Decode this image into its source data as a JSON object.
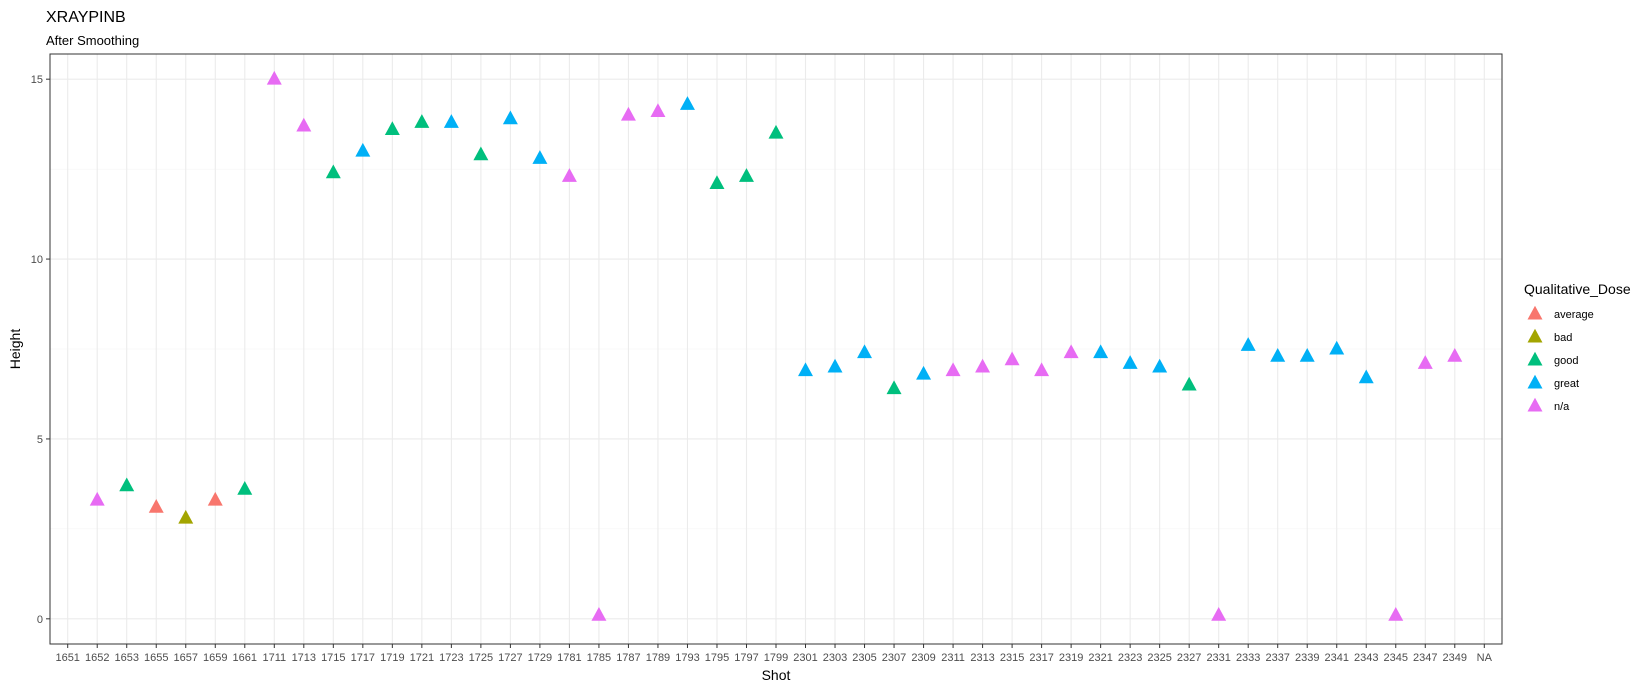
{
  "chart_data": {
    "type": "scatter",
    "title": "XRAYPINB",
    "subtitle": "After Smoothing",
    "xlabel": "Shot",
    "ylabel": "Height",
    "ylim": [
      -0.7,
      15.7
    ],
    "yticks": [
      0,
      5,
      10,
      15
    ],
    "grid": true,
    "legend_position": "right",
    "legend": {
      "title": "Qualitative_Dose",
      "entries": [
        {
          "label": "average",
          "color": "#F8766D"
        },
        {
          "label": "bad",
          "color": "#A3A500"
        },
        {
          "label": "good",
          "color": "#00BF7D"
        },
        {
          "label": "great",
          "color": "#00B0F6"
        },
        {
          "label": "n/a",
          "color": "#E76BF3"
        }
      ]
    },
    "categories": [
      "1651",
      "1652",
      "1653",
      "1655",
      "1657",
      "1659",
      "1661",
      "1711",
      "1713",
      "1715",
      "1717",
      "1719",
      "1721",
      "1723",
      "1725",
      "1727",
      "1729",
      "1781",
      "1785",
      "1787",
      "1789",
      "1793",
      "1795",
      "1797",
      "1799",
      "2301",
      "2303",
      "2305",
      "2307",
      "2309",
      "2311",
      "2313",
      "2315",
      "2317",
      "2319",
      "2321",
      "2323",
      "2325",
      "2327",
      "2331",
      "2333",
      "2337",
      "2339",
      "2341",
      "2343",
      "2345",
      "2347",
      "2349",
      "NA"
    ],
    "points": [
      {
        "x": "1652",
        "y": 3.3,
        "dose": "n/a"
      },
      {
        "x": "1653",
        "y": 3.7,
        "dose": "good"
      },
      {
        "x": "1655",
        "y": 3.1,
        "dose": "average"
      },
      {
        "x": "1657",
        "y": 2.8,
        "dose": "bad"
      },
      {
        "x": "1659",
        "y": 3.3,
        "dose": "average"
      },
      {
        "x": "1661",
        "y": 3.6,
        "dose": "good"
      },
      {
        "x": "1711",
        "y": 15.0,
        "dose": "n/a"
      },
      {
        "x": "1713",
        "y": 13.7,
        "dose": "n/a"
      },
      {
        "x": "1715",
        "y": 12.4,
        "dose": "good"
      },
      {
        "x": "1717",
        "y": 13.0,
        "dose": "great"
      },
      {
        "x": "1719",
        "y": 13.6,
        "dose": "good"
      },
      {
        "x": "1721",
        "y": 13.8,
        "dose": "good"
      },
      {
        "x": "1723",
        "y": 13.8,
        "dose": "great"
      },
      {
        "x": "1725",
        "y": 12.9,
        "dose": "good"
      },
      {
        "x": "1727",
        "y": 13.9,
        "dose": "great"
      },
      {
        "x": "1729",
        "y": 12.8,
        "dose": "great"
      },
      {
        "x": "1781",
        "y": 12.3,
        "dose": "n/a"
      },
      {
        "x": "1785",
        "y": 0.1,
        "dose": "n/a"
      },
      {
        "x": "1787",
        "y": 14.0,
        "dose": "n/a"
      },
      {
        "x": "1789",
        "y": 14.1,
        "dose": "n/a"
      },
      {
        "x": "1793",
        "y": 14.3,
        "dose": "great"
      },
      {
        "x": "1795",
        "y": 12.1,
        "dose": "good"
      },
      {
        "x": "1797",
        "y": 12.3,
        "dose": "good"
      },
      {
        "x": "1799",
        "y": 13.5,
        "dose": "good"
      },
      {
        "x": "2301",
        "y": 6.9,
        "dose": "great"
      },
      {
        "x": "2303",
        "y": 7.0,
        "dose": "great"
      },
      {
        "x": "2305",
        "y": 7.4,
        "dose": "great"
      },
      {
        "x": "2307",
        "y": 6.4,
        "dose": "good"
      },
      {
        "x": "2309",
        "y": 6.8,
        "dose": "great"
      },
      {
        "x": "2311",
        "y": 6.9,
        "dose": "n/a"
      },
      {
        "x": "2313",
        "y": 7.0,
        "dose": "n/a"
      },
      {
        "x": "2315",
        "y": 7.2,
        "dose": "n/a"
      },
      {
        "x": "2317",
        "y": 6.9,
        "dose": "n/a"
      },
      {
        "x": "2319",
        "y": 7.4,
        "dose": "n/a"
      },
      {
        "x": "2321",
        "y": 7.4,
        "dose": "great"
      },
      {
        "x": "2323",
        "y": 7.1,
        "dose": "great"
      },
      {
        "x": "2325",
        "y": 7.0,
        "dose": "great"
      },
      {
        "x": "2327",
        "y": 6.5,
        "dose": "good"
      },
      {
        "x": "2331",
        "y": 0.1,
        "dose": "n/a"
      },
      {
        "x": "2333",
        "y": 7.6,
        "dose": "great"
      },
      {
        "x": "2337",
        "y": 7.3,
        "dose": "great"
      },
      {
        "x": "2339",
        "y": 7.3,
        "dose": "great"
      },
      {
        "x": "2341",
        "y": 7.5,
        "dose": "great"
      },
      {
        "x": "2343",
        "y": 6.7,
        "dose": "great"
      },
      {
        "x": "2345",
        "y": 0.1,
        "dose": "n/a"
      },
      {
        "x": "2347",
        "y": 7.1,
        "dose": "n/a"
      },
      {
        "x": "2349",
        "y": 7.3,
        "dose": "n/a"
      }
    ]
  }
}
